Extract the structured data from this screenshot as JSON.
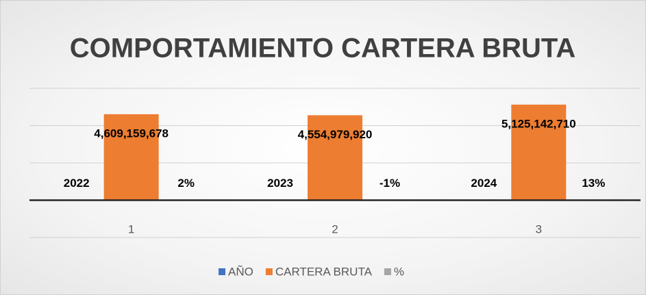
{
  "chart_data": {
    "type": "bar",
    "title": "COMPORTAMIENTO CARTERA BRUTA",
    "categories": [
      "1",
      "2",
      "3"
    ],
    "series": [
      {
        "name": "AÑO",
        "color": "#4472c4",
        "values": [
          2022,
          2023,
          2024
        ]
      },
      {
        "name": "CARTERA BRUTA",
        "color": "#ed7d31",
        "values": [
          4609159678,
          4554979920,
          5125142710
        ],
        "value_labels": [
          "4,609,159,678",
          "4,554,979,920",
          "5,125,142,710"
        ]
      },
      {
        "name": "%",
        "color": "#a5a5a5",
        "values": [
          2,
          -1,
          13
        ],
        "value_labels": [
          "2%",
          "-1%",
          "13%"
        ]
      }
    ],
    "ylim": [
      -2000000000,
      6000000000
    ],
    "yticks": [
      -2000000000,
      0,
      2000000000,
      4000000000,
      6000000000
    ],
    "grid": true,
    "legend": "bottom"
  }
}
